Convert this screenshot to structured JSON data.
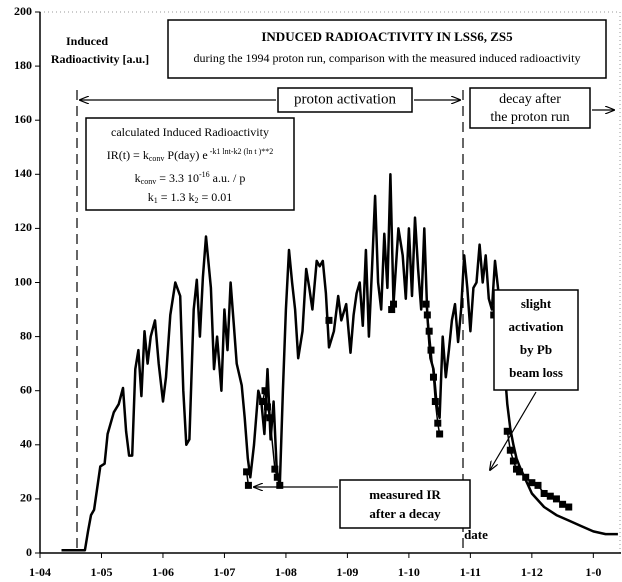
{
  "chart_data": {
    "type": "line",
    "title": "INDUCED RADIOACTIVITY IN LSS6, ZS5",
    "subtitle": "during the 1994 proton run, comparison with the measured induced radioactivity",
    "y_label": [
      "Induced",
      "Radioactivity [a.u.]"
    ],
    "x_label": "date",
    "xlim": [
      0,
      9.45
    ],
    "xticks": [
      {
        "value": 0,
        "label": "1-04"
      },
      {
        "value": 1,
        "label": "1-05"
      },
      {
        "value": 2,
        "label": "1-06"
      },
      {
        "value": 3,
        "label": "1-07"
      },
      {
        "value": 4,
        "label": "1-08"
      },
      {
        "value": 5,
        "label": "1-09"
      },
      {
        "value": 6,
        "label": "1-10"
      },
      {
        "value": 7,
        "label": "1-11"
      },
      {
        "value": 8,
        "label": "1-12"
      },
      {
        "value": 9,
        "label": "1-0"
      }
    ],
    "ylim": [
      0,
      200
    ],
    "yticks": [
      0,
      20,
      40,
      60,
      80,
      100,
      120,
      140,
      160,
      180,
      200
    ],
    "grid": false,
    "annotations": {
      "phase1": "proton activation",
      "phase2": [
        "decay after",
        "the proton run"
      ],
      "measured": [
        "measured IR",
        "after a decay"
      ],
      "slight": [
        "slight",
        "activation",
        "by Pb",
        "beam loss"
      ],
      "formula": {
        "head": "calculated  Induced Radioactivity",
        "ir": [
          "IR(t) = k",
          "conv",
          "    P(day)  e",
          " -k1 lnt-k2 (ln t )**2"
        ],
        "k": [
          "k",
          "conv",
          " = 3.3 10",
          "-16",
          "  a.u. / p"
        ],
        "k12": [
          "k",
          "1",
          " = 1.3",
          "       k",
          "2",
          " = 0.01"
        ]
      }
    },
    "series": [
      {
        "color": "#000000",
        "width": 2.5,
        "markers": false,
        "x": [
          0.35,
          0.73,
          0.78,
          0.83,
          0.88,
          0.93,
          0.98,
          1.05,
          1.1,
          1.2,
          1.28,
          1.35,
          1.4,
          1.45,
          1.5,
          1.55,
          1.6,
          1.65,
          1.7,
          1.75,
          1.8,
          1.87,
          1.93,
          2.0,
          2.05,
          2.12,
          2.2,
          2.28,
          2.33,
          2.38,
          2.43,
          2.5,
          2.55,
          2.6,
          2.65,
          2.7,
          2.78,
          2.83,
          2.88,
          2.95,
          3.0,
          3.05,
          3.1,
          3.15,
          3.2,
          3.28,
          3.33,
          3.38,
          3.42,
          3.48,
          3.55,
          3.6,
          3.65,
          3.7,
          3.75,
          3.8,
          3.85,
          3.9,
          3.95,
          4.0,
          4.05,
          4.1,
          4.15,
          4.2,
          4.27,
          4.33,
          4.38,
          4.43,
          4.5,
          4.55,
          4.6,
          4.65,
          4.7,
          4.78,
          4.85,
          4.9,
          4.98,
          5.05,
          5.1,
          5.15,
          5.2,
          5.25,
          5.3,
          5.35,
          5.4,
          5.45,
          5.5,
          5.55,
          5.6,
          5.65,
          5.7,
          5.75,
          5.83,
          5.9,
          5.95,
          6.0,
          6.05,
          6.1,
          6.15,
          6.2,
          6.25,
          6.3,
          6.35,
          6.4,
          6.45,
          6.5,
          6.55,
          6.6,
          6.65,
          6.7,
          6.75,
          6.8,
          6.85,
          6.9,
          6.95,
          7.0,
          7.05,
          7.1,
          7.15,
          7.2,
          7.25,
          7.3,
          7.35,
          7.4,
          7.45,
          7.5,
          7.55,
          7.6,
          7.65,
          7.7,
          7.75,
          7.8,
          7.9,
          8.0,
          8.2,
          8.4,
          8.6,
          8.8,
          9.0,
          9.2,
          9.4
        ],
        "values": [
          1,
          1,
          8,
          14,
          16,
          24,
          32,
          33,
          44,
          52,
          55,
          61,
          45,
          36,
          36,
          68,
          75,
          58,
          82,
          70,
          80,
          86,
          70,
          56,
          65,
          88,
          100,
          95,
          60,
          40,
          42,
          90,
          101,
          80,
          102,
          117,
          98,
          68,
          80,
          60,
          90,
          75,
          100,
          85,
          70,
          62,
          50,
          35,
          28,
          40,
          60,
          56,
          44,
          68,
          42,
          56,
          31,
          25,
          60,
          90,
          112,
          100,
          90,
          72,
          82,
          105,
          98,
          90,
          108,
          106,
          108,
          96,
          76,
          82,
          95,
          86,
          92,
          74,
          88,
          96,
          100,
          84,
          112,
          80,
          105,
          132,
          100,
          90,
          118,
          98,
          140,
          92,
          120,
          110,
          94,
          120,
          95,
          124,
          105,
          90,
          120,
          88,
          72,
          68,
          55,
          50,
          80,
          65,
          75,
          86,
          92,
          78,
          90,
          110,
          98,
          82,
          98,
          100,
          114,
          100,
          110,
          94,
          90,
          108,
          98,
          85,
          70,
          55,
          46,
          40,
          35,
          32,
          27,
          22,
          17,
          14,
          12,
          10,
          8,
          7,
          7
        ]
      },
      {
        "color": "#000000",
        "width": 1.5,
        "markers": true,
        "x": [
          3.36,
          3.39,
          null,
          3.62,
          3.66,
          3.7,
          3.74,
          3.82,
          3.86,
          3.9,
          null,
          4.7,
          null,
          5.72,
          5.75,
          null,
          6.28,
          6.3,
          6.33,
          6.36,
          6.4,
          6.43,
          6.47,
          6.5,
          null,
          7.38,
          7.42,
          null,
          7.6,
          7.65,
          7.7,
          7.75,
          7.8,
          7.9,
          8.0,
          8.1,
          8.2,
          8.3,
          8.4,
          8.5,
          8.6
        ],
        "values": [
          30,
          25,
          null,
          56,
          60,
          54,
          50,
          31,
          28,
          25,
          null,
          86,
          null,
          90,
          92,
          null,
          92,
          88,
          82,
          75,
          65,
          56,
          48,
          44,
          null,
          88,
          90,
          null,
          45,
          38,
          34,
          31,
          30,
          28,
          26,
          25,
          22,
          21,
          20,
          18,
          17
        ]
      }
    ]
  }
}
